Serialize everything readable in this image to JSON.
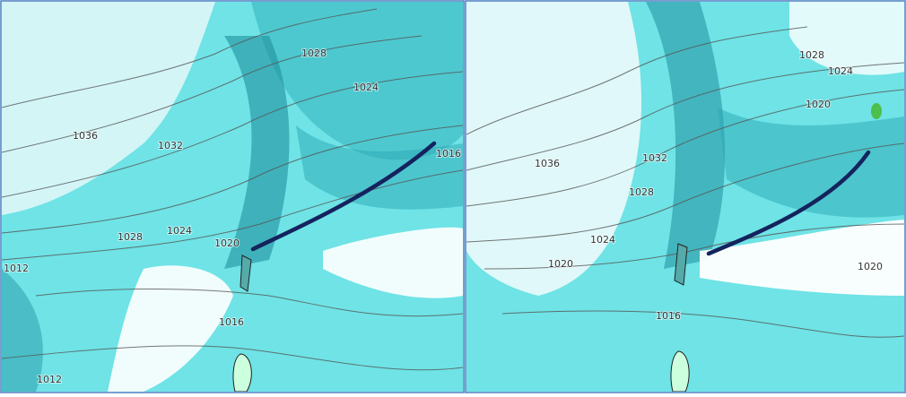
{
  "panels": [
    {
      "isobar_labels": [
        "1028",
        "1024",
        "1036",
        "1032",
        "1016",
        "1028",
        "1024",
        "1020",
        "1012",
        "1016",
        "1012"
      ]
    },
    {
      "isobar_labels": [
        "1028",
        "1024",
        "1020",
        "1036",
        "1032",
        "1028",
        "1024",
        "1020",
        "1016",
        "1020"
      ]
    }
  ]
}
